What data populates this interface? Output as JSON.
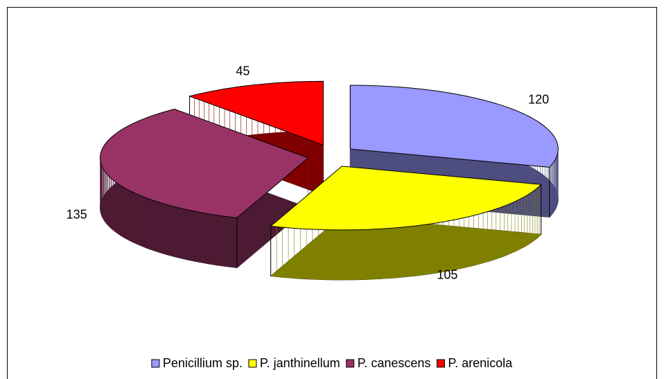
{
  "chart_data": {
    "type": "pie3d",
    "categories": [
      "Penicillium sp.",
      "P. janthinellum",
      "P. canescens",
      "P. arenicola"
    ],
    "values": [
      120,
      105,
      135,
      45
    ],
    "colors": [
      "#9999ff",
      "#ffff00",
      "#993366",
      "#ff0000"
    ],
    "legend": "bottom"
  }
}
